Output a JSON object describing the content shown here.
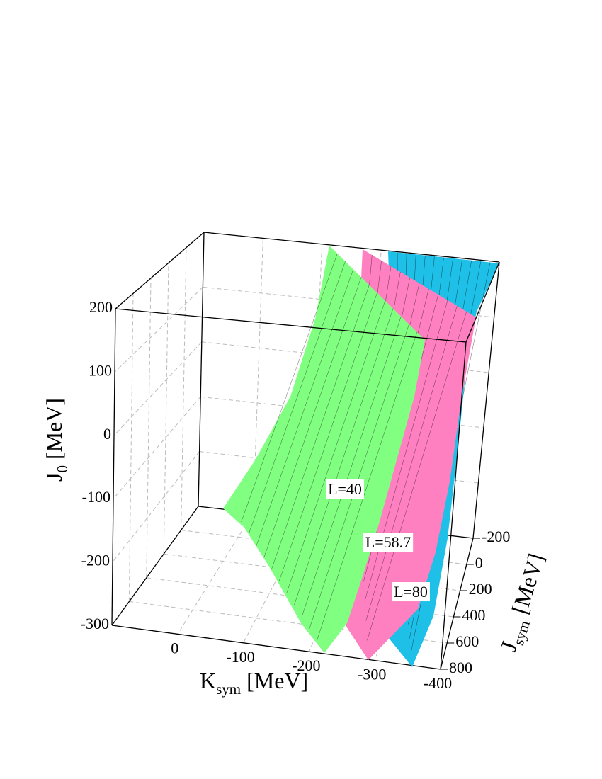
{
  "chart_data": {
    "type": "surface3d",
    "xlabel": {
      "symbol": "K",
      "sub": "sym",
      "unit": "[MeV]"
    },
    "ylabel": {
      "symbol": "J",
      "sub": "sym",
      "unit": "[MeV]"
    },
    "zlabel": {
      "symbol": "J",
      "sub": "0",
      "unit": "[MeV]"
    },
    "xlim": [
      100,
      -400
    ],
    "xticks": [
      0,
      -100,
      -200,
      -300,
      -400
    ],
    "ylim": [
      -200,
      800
    ],
    "yticks": [
      -200,
      0,
      200,
      400,
      600,
      800
    ],
    "zlim": [
      -300,
      200
    ],
    "zticks": [
      -300,
      -200,
      -100,
      0,
      100,
      200
    ],
    "grid": true,
    "series": [
      {
        "name": "L=40",
        "color": "#80ff80"
      },
      {
        "name": "L=58.7",
        "color": "#ff80c0"
      },
      {
        "name": "L=80",
        "color": "#1ec0e8"
      }
    ]
  }
}
